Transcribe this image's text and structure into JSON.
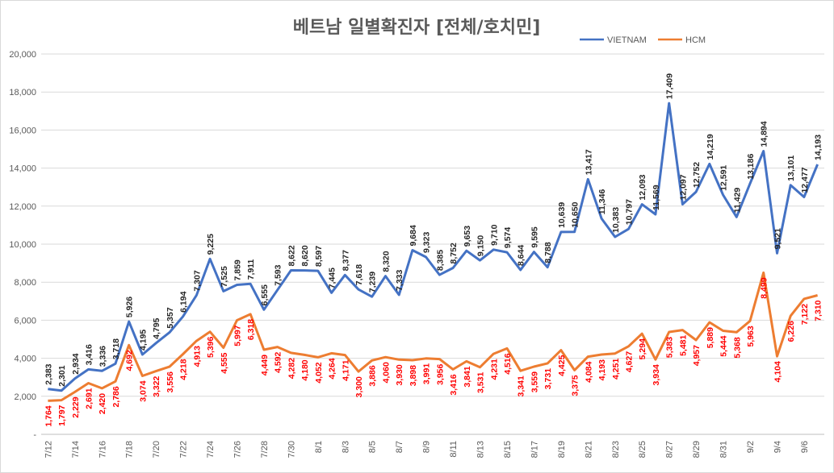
{
  "chart_data": {
    "type": "line",
    "title": "베트남  일별확진자 [전체/호치민]",
    "ylim": [
      0,
      20000
    ],
    "y_ticks": [
      {
        "value": 0,
        "label": "-"
      },
      {
        "value": 2000,
        "label": "2,000"
      },
      {
        "value": 4000,
        "label": "4,000"
      },
      {
        "value": 6000,
        "label": "6,000"
      },
      {
        "value": 8000,
        "label": "8,000"
      },
      {
        "value": 10000,
        "label": "10,000"
      },
      {
        "value": 12000,
        "label": "12,000"
      },
      {
        "value": 14000,
        "label": "14,000"
      },
      {
        "value": 16000,
        "label": "16,000"
      },
      {
        "value": 18000,
        "label": "18,000"
      },
      {
        "value": 20000,
        "label": "20,000"
      }
    ],
    "grid": true,
    "legend_position": "top-right",
    "categories": [
      "7/12",
      "7/13",
      "7/14",
      "7/15",
      "7/16",
      "7/17",
      "7/18",
      "7/19",
      "7/20",
      "7/21",
      "7/22",
      "7/23",
      "7/24",
      "7/25",
      "7/26",
      "7/27",
      "7/28",
      "7/29",
      "7/30",
      "7/31",
      "8/1",
      "8/2",
      "8/3",
      "8/4",
      "8/5",
      "8/6",
      "8/7",
      "8/8",
      "8/9",
      "8/10",
      "8/11",
      "8/12",
      "8/13",
      "8/14",
      "8/15",
      "8/16",
      "8/17",
      "8/18",
      "8/19",
      "8/20",
      "8/21",
      "8/22",
      "8/23",
      "8/24",
      "8/25",
      "8/26",
      "8/27",
      "8/28",
      "8/29",
      "8/30",
      "8/31",
      "9/1",
      "9/2",
      "9/3",
      "9/4",
      "9/5",
      "9/6",
      "9/7"
    ],
    "x_tick_labels": [
      "7/12",
      "7/14",
      "7/16",
      "7/18",
      "7/20",
      "7/22",
      "7/24",
      "7/26",
      "7/28",
      "7/30",
      "8/1",
      "8/3",
      "8/5",
      "8/7",
      "8/9",
      "8/11",
      "8/13",
      "8/15",
      "8/17",
      "8/19",
      "8/21",
      "8/23",
      "8/25",
      "8/27",
      "8/29",
      "8/31",
      "9/2",
      "9/4",
      "9/6"
    ],
    "series": [
      {
        "name": "VIETNAM",
        "color": "#4472c4",
        "values": [
          2383,
          2301,
          2934,
          3416,
          3336,
          3718,
          5926,
          4195,
          4795,
          5357,
          6194,
          7307,
          9225,
          7525,
          7859,
          7911,
          6555,
          7593,
          8622,
          8620,
          8597,
          7445,
          8377,
          7618,
          7239,
          8320,
          7333,
          9684,
          9323,
          8385,
          8752,
          9653,
          9150,
          9710,
          9574,
          8644,
          9595,
          8788,
          10639,
          10650,
          13417,
          11346,
          10383,
          10797,
          12093,
          11569,
          17409,
          12097,
          12752,
          14219,
          12591,
          11429,
          13186,
          14894,
          9521,
          13101,
          12477,
          14193
        ],
        "labels": [
          "2,383",
          "2,301",
          "2,934",
          "3,416",
          "3,336",
          "3,718",
          "5,926",
          "4,195",
          "4,795",
          "5,357",
          "6,194",
          "7,307",
          "9,225",
          "7,525",
          "7,859",
          "7,911",
          "6,555",
          "7,593",
          "8,622",
          "8,620",
          "8,597",
          "7,445",
          "8,377",
          "7,618",
          "7,239",
          "8,320",
          "7,333",
          "9,684",
          "9,323",
          "8,385",
          "8,752",
          "9,653",
          "9,150",
          "9,710",
          "9,574",
          "8,644",
          "9,595",
          "8,788",
          "10,639",
          "10,650",
          "13,417",
          "11,346",
          "10,383",
          "10,797",
          "12,093",
          "11,569",
          "17,409",
          "12,097",
          "12,752",
          "14,219",
          "12,591",
          "11,429",
          "13,186",
          "14,894",
          "9,521",
          "13,101",
          "12,477",
          "14,193"
        ]
      },
      {
        "name": "HCM",
        "color": "#ed7d31",
        "values": [
          1764,
          1797,
          2229,
          2691,
          2420,
          2786,
          4692,
          3074,
          3322,
          3556,
          4218,
          4913,
          5396,
          4555,
          5997,
          6318,
          4449,
          4592,
          4282,
          4180,
          4052,
          4264,
          4171,
          3300,
          3886,
          4060,
          3930,
          3898,
          3991,
          3956,
          3416,
          3841,
          3531,
          4231,
          4516,
          3341,
          3559,
          3731,
          4425,
          3375,
          4084,
          4193,
          4251,
          4627,
          5294,
          3934,
          5383,
          5481,
          4957,
          5889,
          5444,
          5368,
          5963,
          8499,
          4104,
          6226,
          7122,
          7310
        ],
        "labels": [
          "1,764",
          "1,797",
          "2,229",
          "2,691",
          "2,420",
          "2,786",
          "4,692",
          "3,074",
          "3,322",
          "3,556",
          "4,218",
          "4,913",
          "5,396",
          "4,555",
          "5,997",
          "6,318",
          "4,449",
          "4,592",
          "4,282",
          "4,180",
          "4,052",
          "4,264",
          "4,171",
          "3,300",
          "3,886",
          "4,060",
          "3,930",
          "3,898",
          "3,991",
          "3,956",
          "3,416",
          "3,841",
          "3,531",
          "4,231",
          "4,516",
          "3,341",
          "3,559",
          "3,731",
          "4,425",
          "3,375",
          "4,084",
          "4,193",
          "4,251",
          "4,627",
          "5,294",
          "3,934",
          "5,383",
          "5,481",
          "4,957",
          "5,889",
          "5,444",
          "5,368",
          "5,963",
          "8,499",
          "4,104",
          "6,226",
          "7,122",
          "7,310"
        ]
      }
    ]
  }
}
